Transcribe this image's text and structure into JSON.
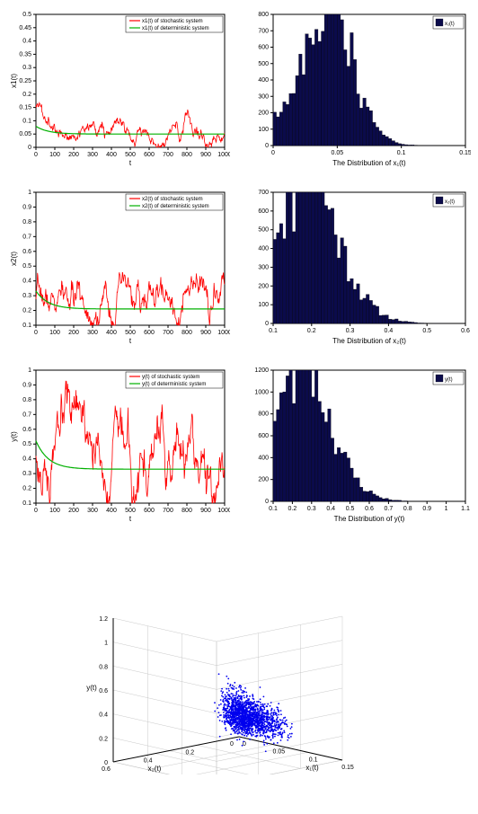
{
  "colors": {
    "stochastic": "#ff0000",
    "deterministic": "#00b000",
    "hist_fill": "#0b0b4b",
    "hist_edge": "#000000",
    "scatter": "#0000ee",
    "axis": "#000000",
    "bg": "#ffffff"
  },
  "fonts": {
    "tick": 7,
    "label": 8,
    "legend": 6
  },
  "panels": {
    "x1_ts": {
      "type": "line",
      "xlabel": "t",
      "ylabel": "x1(t)",
      "xlim": [
        0,
        1000
      ],
      "xtick_step": 100,
      "ylim": [
        0,
        0.5
      ],
      "yticks": [
        0,
        0.05,
        0.1,
        0.15,
        0.2,
        0.25,
        0.3,
        0.35,
        0.4,
        0.45,
        0.5
      ],
      "legend": [
        "x1(t) of stochastic system",
        "x1(t) of deterministic system"
      ],
      "det_mean": 0.05,
      "sto_mean": 0.055,
      "sto_amp": 0.035,
      "initial_spike": 0.15
    },
    "x1_hist": {
      "type": "hist",
      "xlabel": "The Distribution of x₁(t)",
      "legend_box": "x₁(t)",
      "xlim": [
        0,
        0.15
      ],
      "xticks": [
        0,
        0.05,
        0.1,
        0.15
      ],
      "ylim": [
        0,
        800
      ],
      "ytick_step": 100,
      "bins": 60,
      "peak_x": 0.04,
      "peak_y": 740,
      "spread": 0.022
    },
    "x2_ts": {
      "type": "line",
      "xlabel": "t",
      "ylabel": "x2(t)",
      "xlim": [
        0,
        1000
      ],
      "xtick_step": 100,
      "ylim": [
        0.1,
        1.0
      ],
      "yticks": [
        0.1,
        0.2,
        0.3,
        0.4,
        0.5,
        0.6,
        0.7,
        0.8,
        0.9,
        1.0
      ],
      "legend": [
        "x2(t) of stochastic system",
        "x2(t) of deterministic system"
      ],
      "det_mean": 0.21,
      "sto_mean": 0.23,
      "sto_amp": 0.13
    },
    "x2_hist": {
      "type": "hist",
      "xlabel": "The Distribution of x₂(t)",
      "legend_box": "x₂(t)",
      "xlim": [
        0.1,
        0.6
      ],
      "xticks": [
        0.1,
        0.2,
        0.3,
        0.4,
        0.5,
        0.6
      ],
      "ylim": [
        0,
        700
      ],
      "ytick_step": 100,
      "bins": 60,
      "peak_x": 0.17,
      "peak_y": 660,
      "spread": 0.1
    },
    "y_ts": {
      "type": "line",
      "xlabel": "t",
      "ylabel": "y(t)",
      "xlim": [
        0,
        1000
      ],
      "xtick_step": 100,
      "ylim": [
        0.1,
        1.0
      ],
      "yticks": [
        0.1,
        0.2,
        0.3,
        0.4,
        0.5,
        0.6,
        0.7,
        0.8,
        0.9,
        1.0
      ],
      "legend": [
        "y(t) of stochastic system",
        "y(t) of deterministic system"
      ],
      "det_mean": 0.33,
      "sto_mean": 0.38,
      "sto_amp": 0.22
    },
    "y_hist": {
      "type": "hist",
      "xlabel": "The Distribution of y(t)",
      "legend_box": "y(t)",
      "xlim": [
        0.1,
        1.1
      ],
      "xticks": [
        0.1,
        0.2,
        0.3,
        0.4,
        0.5,
        0.6,
        0.7,
        0.8,
        0.9,
        1.0,
        1.1
      ],
      "ylim": [
        0,
        1200
      ],
      "ytick_step": 200,
      "bins": 60,
      "peak_x": 0.22,
      "peak_y": 1050,
      "spread": 0.18
    },
    "scatter3d": {
      "type": "scatter3d",
      "xlabel": "x₁(t)",
      "ylabel": "x₂(t)",
      "zlabel": "y(t)",
      "xlim": [
        0,
        0.15
      ],
      "xticks": [
        0,
        0.05,
        0.1,
        0.15
      ],
      "ylim_axis": [
        0,
        0.6
      ],
      "yticks_axis": [
        0,
        0.2,
        0.4,
        0.6
      ],
      "zlim": [
        0,
        1.2
      ],
      "zticks": [
        0,
        0.2,
        0.4,
        0.6,
        0.8,
        1.0,
        1.2
      ],
      "n_points": 1600
    }
  }
}
